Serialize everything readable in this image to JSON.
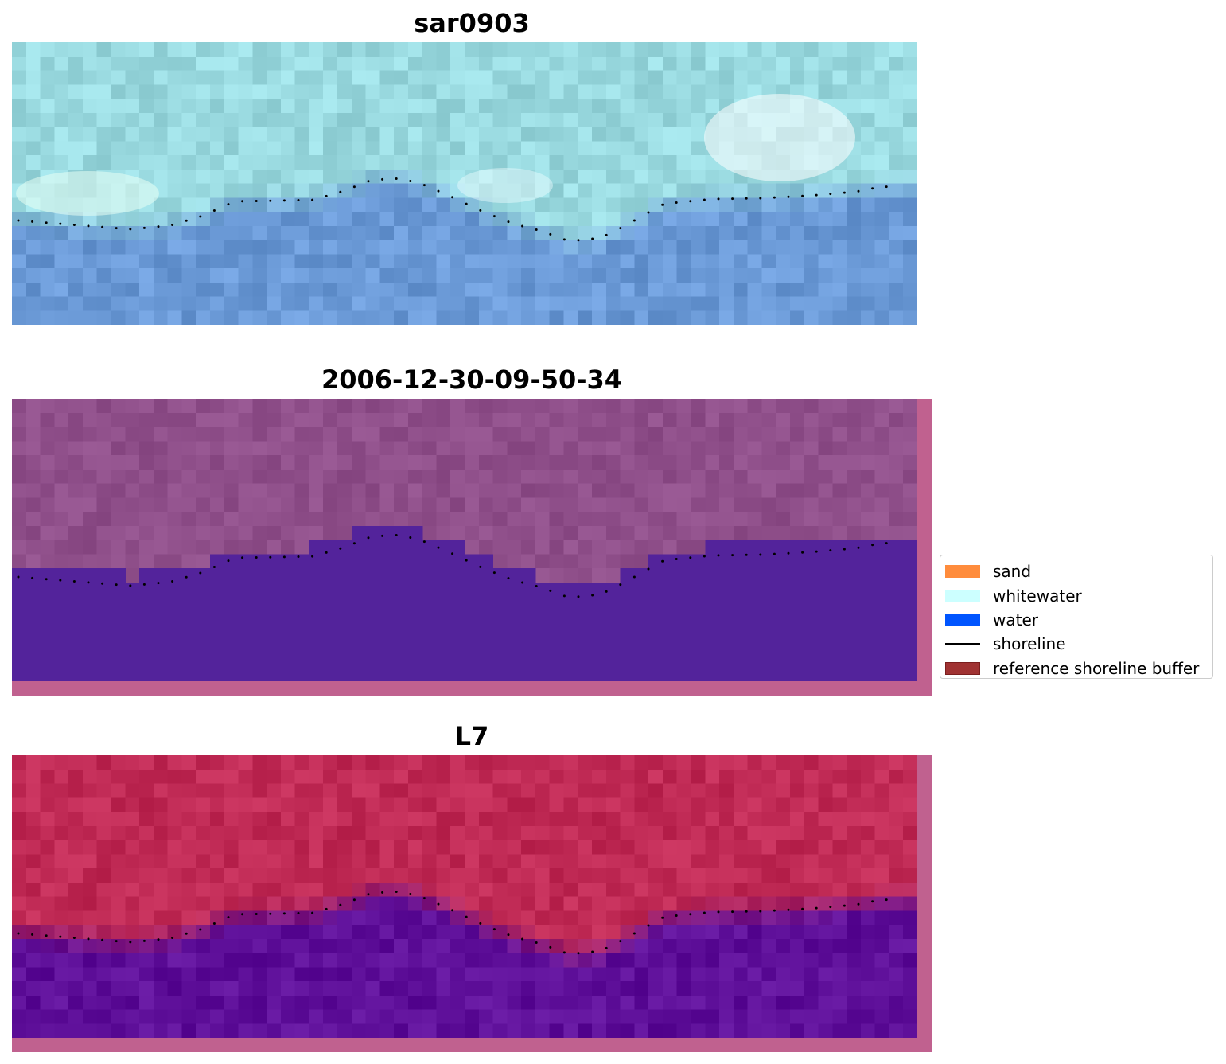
{
  "panels": [
    {
      "title": "sar0903",
      "scheme": "rgb"
    },
    {
      "title": "2006-12-30-09-50-34",
      "scheme": "class"
    },
    {
      "title": "L7",
      "scheme": "ndwi"
    }
  ],
  "legend": {
    "items": [
      {
        "label": "sand",
        "color": "#ff8c3c",
        "kind": "patch"
      },
      {
        "label": "whitewater",
        "color": "#ccffff",
        "kind": "patch"
      },
      {
        "label": "water",
        "color": "#0055ff",
        "kind": "patch"
      },
      {
        "label": "shoreline",
        "color": "#000000",
        "kind": "line"
      },
      {
        "label": "reference shoreline buffer",
        "color": "#a03232",
        "kind": "patch"
      }
    ]
  },
  "colors": {
    "class_water": "#53239b",
    "class_land": "#8f4f8a",
    "border_pink": "#c0618f",
    "ndwi_land": "#c02a55",
    "ndwi_water": "#5e0f99",
    "rgb_land": "#99d9df",
    "rgb_water": "#6a99d6",
    "shoreline_dots": "#000000"
  }
}
